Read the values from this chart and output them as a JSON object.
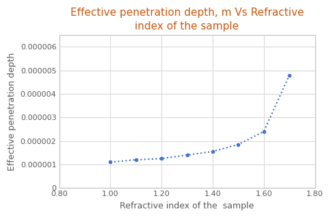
{
  "title": "Effective penetration depth, m Vs Refractive\nindex of the sample",
  "xlabel": "Refractive index of the  sample",
  "ylabel": "Effective penetration depth",
  "x": [
    1.0,
    1.1,
    1.2,
    1.3,
    1.4,
    1.5,
    1.6,
    1.7
  ],
  "y": [
    1.1e-06,
    1.2e-06,
    1.25e-06,
    1.4e-06,
    1.55e-06,
    1.85e-06,
    2.4e-06,
    4.8e-06
  ],
  "xlim": [
    0.8,
    1.8
  ],
  "ylim": [
    0,
    6.5e-06
  ],
  "xticks": [
    0.8,
    1.0,
    1.2,
    1.4,
    1.6,
    1.8
  ],
  "yticks": [
    0,
    1e-06,
    2e-06,
    3e-06,
    4e-06,
    5e-06,
    6e-06
  ],
  "ytick_labels": [
    "0",
    "0.000001",
    "0.000002",
    "0.000003",
    "0.000004",
    "0.000005",
    "0.000006"
  ],
  "xtick_labels": [
    "0.80",
    "1.00",
    "1.20",
    "1.40",
    "1.60",
    "1.80"
  ],
  "line_color": "#4472C4",
  "marker_color": "#4472C4",
  "title_color": "#C55A11",
  "label_color": "#595959",
  "tick_color": "#595959",
  "background_color": "#FFFFFF",
  "plot_bg_color": "#FFFFFF",
  "grid_color": "#D9D9D9",
  "title_fontsize": 11,
  "label_fontsize": 9,
  "tick_fontsize": 8
}
